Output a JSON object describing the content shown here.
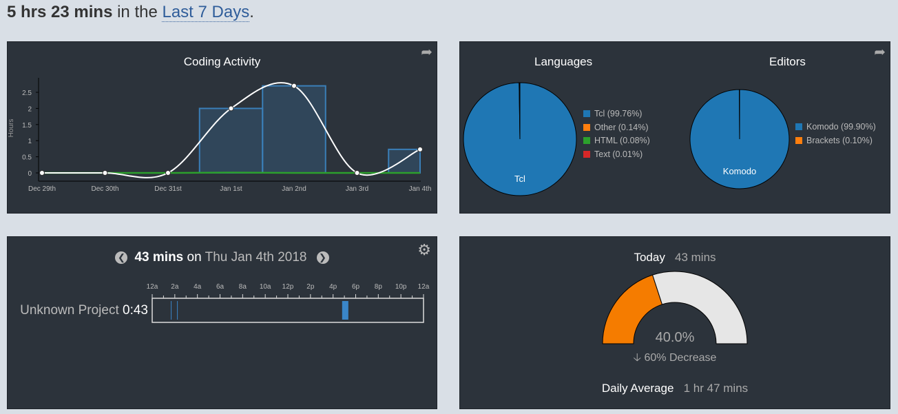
{
  "header": {
    "total": "5 hrs 23 mins",
    "mid": " in the ",
    "range": "Last 7 Days",
    "end": "."
  },
  "coding_activity": {
    "title": "Coding Activity",
    "share_icon": "share-icon"
  },
  "chart_data": {
    "type": "line",
    "title": "Coding Activity",
    "ylabel": "Hours",
    "categories": [
      "Dec 29th",
      "Dec 30th",
      "Dec 31st",
      "Jan 1st",
      "Jan 2nd",
      "Jan 3rd",
      "Jan 4th"
    ],
    "y_ticks": [
      "0",
      "0.5",
      "1",
      "1.5",
      "2",
      "2.5"
    ],
    "ylim": [
      -0.25,
      3
    ],
    "series": [
      {
        "values": [
          0,
          0,
          0,
          2.0,
          2.7,
          0,
          0.73
        ],
        "color": "#ffffff"
      }
    ],
    "bars": {
      "values": [
        0,
        0,
        0,
        2.0,
        2.7,
        0,
        0.73
      ],
      "color": "#3a7fb8"
    },
    "secondary_line": {
      "values": [
        0,
        0,
        0,
        0.01,
        0,
        0,
        0
      ],
      "color": "#2ca02c"
    }
  },
  "languages": {
    "title": "Languages",
    "pie_label": "Tcl",
    "items": [
      {
        "label": "Tcl (99.76%)",
        "value": 99.76,
        "color": "#1f77b4"
      },
      {
        "label": "Other (0.14%)",
        "value": 0.14,
        "color": "#ff7f0e"
      },
      {
        "label": "HTML (0.08%)",
        "value": 0.08,
        "color": "#2ca02c"
      },
      {
        "label": "Text (0.01%)",
        "value": 0.01,
        "color": "#d62728"
      }
    ]
  },
  "editors": {
    "title": "Editors",
    "pie_label": "Komodo",
    "items": [
      {
        "label": "Komodo (99.90%)",
        "value": 99.9,
        "color": "#1f77b4"
      },
      {
        "label": "Brackets (0.10%)",
        "value": 0.1,
        "color": "#ff7f0e"
      }
    ]
  },
  "day": {
    "total": "43 mins",
    "on": " on ",
    "date": "Thu Jan 4th 2018",
    "hours": [
      "12a",
      "2a",
      "4a",
      "6a",
      "8a",
      "10a",
      "12p",
      "2p",
      "4p",
      "6p",
      "8p",
      "10p",
      "12a"
    ],
    "project": "Unknown Project",
    "project_time": "0:43"
  },
  "today": {
    "label": "Today",
    "value": "43 mins",
    "percent": "40.0%",
    "percent_value": 40,
    "change": "60% Decrease",
    "avg_label": "Daily Average",
    "avg_value": "1 hr 47 mins",
    "fill_color": "#f57c00"
  }
}
